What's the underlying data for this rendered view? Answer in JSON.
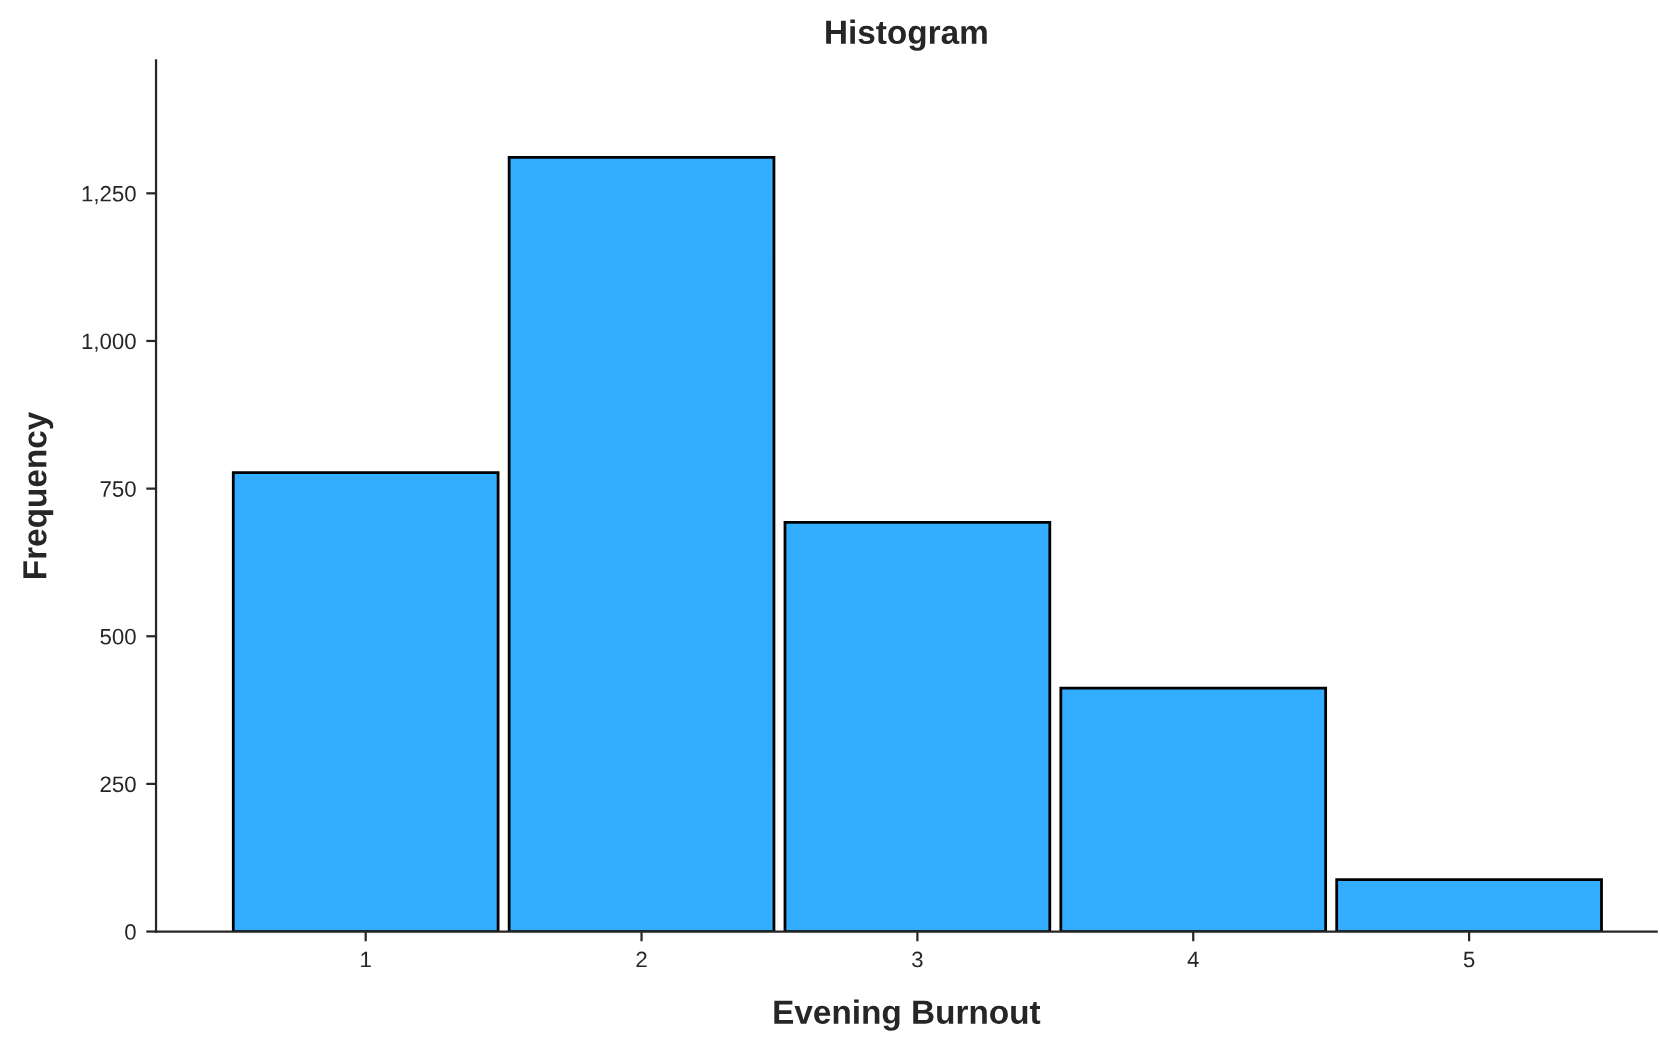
{
  "chart_data": {
    "type": "bar",
    "title": "Histogram",
    "xlabel": "Evening Burnout",
    "ylabel": "Frequency",
    "categories": [
      "1",
      "2",
      "3",
      "4",
      "5"
    ],
    "values": [
      777,
      1311,
      693,
      412,
      88
    ],
    "color": "#33adff",
    "ylim": [
      0,
      1475
    ],
    "yticks": [
      0,
      250,
      500,
      750,
      {
        "value": 1000,
        "label": "1,000"
      },
      {
        "value": 1250,
        "label": "1,250"
      }
    ],
    "grid": false
  }
}
